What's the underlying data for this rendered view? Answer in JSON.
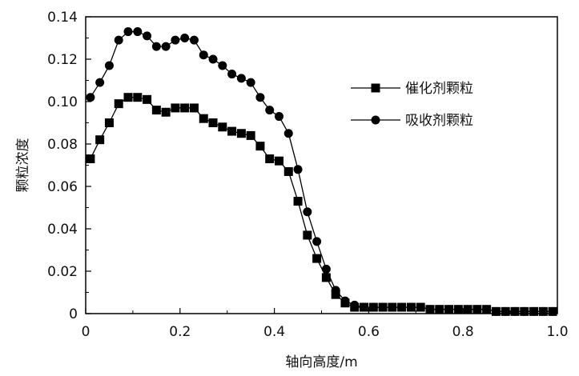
{
  "chart_data": {
    "type": "line",
    "xlabel": "轴向高度/m",
    "ylabel": "颗粒浓度",
    "xlim": [
      0,
      1.0
    ],
    "ylim": [
      0,
      0.14
    ],
    "xticks": [
      "0",
      "0.2",
      "0.4",
      "0.6",
      "0.8",
      "1.0"
    ],
    "yticks": [
      "0",
      "0.02",
      "0.04",
      "0.06",
      "0.08",
      "0.10",
      "0.12",
      "0.14"
    ],
    "grid": false,
    "legend_position": "right",
    "series": [
      {
        "name": "催化剂颗粒",
        "marker": "square",
        "x": [
          0.01,
          0.03,
          0.05,
          0.07,
          0.09,
          0.11,
          0.13,
          0.15,
          0.17,
          0.19,
          0.21,
          0.23,
          0.25,
          0.27,
          0.29,
          0.31,
          0.33,
          0.35,
          0.37,
          0.39,
          0.41,
          0.43,
          0.45,
          0.47,
          0.49,
          0.51,
          0.53,
          0.55,
          0.57,
          0.59,
          0.61,
          0.63,
          0.65,
          0.67,
          0.69,
          0.71,
          0.73,
          0.75,
          0.77,
          0.79,
          0.81,
          0.83,
          0.85,
          0.87,
          0.89,
          0.91,
          0.93,
          0.95,
          0.97,
          0.99
        ],
        "y": [
          0.073,
          0.082,
          0.09,
          0.099,
          0.102,
          0.102,
          0.101,
          0.096,
          0.095,
          0.097,
          0.097,
          0.097,
          0.092,
          0.09,
          0.088,
          0.086,
          0.085,
          0.084,
          0.079,
          0.073,
          0.072,
          0.067,
          0.053,
          0.037,
          0.026,
          0.017,
          0.009,
          0.005,
          0.003,
          0.003,
          0.003,
          0.003,
          0.003,
          0.003,
          0.003,
          0.003,
          0.002,
          0.002,
          0.002,
          0.002,
          0.002,
          0.002,
          0.002,
          0.001,
          0.001,
          0.001,
          0.001,
          0.001,
          0.001,
          0.001
        ]
      },
      {
        "name": "吸收剂颗粒",
        "marker": "circle",
        "x": [
          0.01,
          0.03,
          0.05,
          0.07,
          0.09,
          0.11,
          0.13,
          0.15,
          0.17,
          0.19,
          0.21,
          0.23,
          0.25,
          0.27,
          0.29,
          0.31,
          0.33,
          0.35,
          0.37,
          0.39,
          0.41,
          0.43,
          0.45,
          0.47,
          0.49,
          0.51,
          0.53,
          0.55,
          0.57,
          0.59,
          0.61,
          0.63,
          0.65,
          0.67,
          0.69,
          0.71,
          0.73,
          0.75,
          0.77,
          0.79,
          0.81,
          0.83,
          0.85,
          0.87,
          0.89,
          0.91,
          0.93,
          0.95,
          0.97,
          0.99
        ],
        "y": [
          0.102,
          0.109,
          0.117,
          0.129,
          0.133,
          0.133,
          0.131,
          0.126,
          0.126,
          0.129,
          0.13,
          0.129,
          0.122,
          0.12,
          0.117,
          0.113,
          0.111,
          0.109,
          0.102,
          0.096,
          0.093,
          0.085,
          0.068,
          0.048,
          0.034,
          0.021,
          0.011,
          0.006,
          0.004,
          0.003,
          0.003,
          0.003,
          0.003,
          0.003,
          0.003,
          0.003,
          0.002,
          0.002,
          0.002,
          0.002,
          0.002,
          0.002,
          0.002,
          0.001,
          0.001,
          0.001,
          0.001,
          0.001,
          0.001,
          0.001
        ]
      }
    ]
  }
}
